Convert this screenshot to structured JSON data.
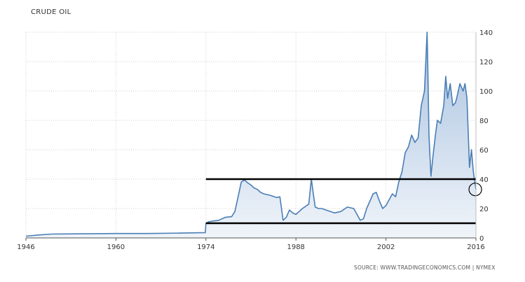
{
  "chart_data": {
    "type": "area",
    "title": "CRUDE OIL",
    "source": "SOURCE: WWW.TRADINGECONOMICS.COM | NYMEX",
    "xlabel": "",
    "ylabel": "",
    "xlim": [
      1946,
      2016
    ],
    "ylim": [
      0,
      140
    ],
    "x_ticks": [
      "1946",
      "1960",
      "1974",
      "1988",
      "2002",
      "2016"
    ],
    "y_ticks": [
      "0",
      "20",
      "40",
      "60",
      "80",
      "100",
      "120",
      "140"
    ],
    "grid": true,
    "series": [
      {
        "color": "#4a7eb5",
        "fill": "#d6e3f1",
        "x": [
          1946,
          1948,
          1950,
          1955,
          1960,
          1965,
          1970,
          1973.9,
          1974.0,
          1974.5,
          1975,
          1976,
          1977,
          1978,
          1978.5,
          1979,
          1979.5,
          1980,
          1980.5,
          1981,
          1981.5,
          1982,
          1982.5,
          1983,
          1984,
          1985,
          1985.5,
          1986,
          1986.5,
          1987,
          1987.5,
          1988,
          1988.5,
          1989,
          1989.5,
          1990,
          1990.4,
          1990.7,
          1991,
          1991.5,
          1992,
          1993,
          1994,
          1995,
          1996,
          1997,
          1998,
          1998.5,
          1999,
          1999.5,
          2000,
          2000.5,
          2001,
          2001.5,
          2002,
          2002.5,
          2003,
          2003.5,
          2004,
          2004.5,
          2005,
          2005.5,
          2006,
          2006.5,
          2007,
          2007.5,
          2008,
          2008.4,
          2008.5,
          2008.7,
          2009,
          2009.3,
          2009.7,
          2010,
          2010.5,
          2011,
          2011.3,
          2011.6,
          2012,
          2012.4,
          2012.8,
          2013,
          2013.5,
          2014,
          2014.3,
          2014.6,
          2015,
          2015.3,
          2015.6,
          2016
        ],
        "y": [
          1.2,
          2.0,
          2.6,
          2.8,
          3.0,
          3.0,
          3.3,
          3.6,
          10.0,
          11.0,
          11.5,
          12.0,
          14.0,
          14.5,
          18.0,
          28.0,
          38.0,
          39.5,
          37.5,
          36.0,
          34.0,
          33.0,
          31.0,
          30.0,
          29.0,
          27.5,
          28.0,
          12.0,
          14.0,
          19.0,
          17.0,
          16.0,
          18.0,
          20.0,
          21.5,
          23.0,
          40.0,
          30.0,
          21.0,
          20.0,
          20.0,
          18.5,
          17.0,
          18.0,
          21.0,
          20.0,
          12.0,
          13.0,
          20.0,
          25.0,
          30.0,
          31.0,
          25.0,
          20.0,
          22.0,
          26.0,
          30.0,
          28.0,
          38.0,
          45.0,
          58.0,
          62.0,
          70.0,
          65.0,
          68.0,
          90.0,
          100.0,
          140.0,
          120.0,
          70.0,
          42.0,
          55.0,
          70.0,
          80.0,
          78.0,
          90.0,
          110.0,
          95.0,
          105.0,
          90.0,
          92.0,
          95.0,
          105.0,
          100.0,
          105.0,
          95.0,
          48.0,
          60.0,
          45.0,
          33.0
        ]
      }
    ],
    "annotations": [
      {
        "type": "horizontal-line",
        "y": 40,
        "x_start": 1974,
        "x_end": 2016,
        "color": "#000000"
      },
      {
        "type": "horizontal-line",
        "y": 10,
        "x_start": 1974,
        "x_end": 2016,
        "color": "#000000"
      },
      {
        "type": "circle",
        "x": 2015.9,
        "y": 33,
        "color": "#000000"
      }
    ]
  }
}
